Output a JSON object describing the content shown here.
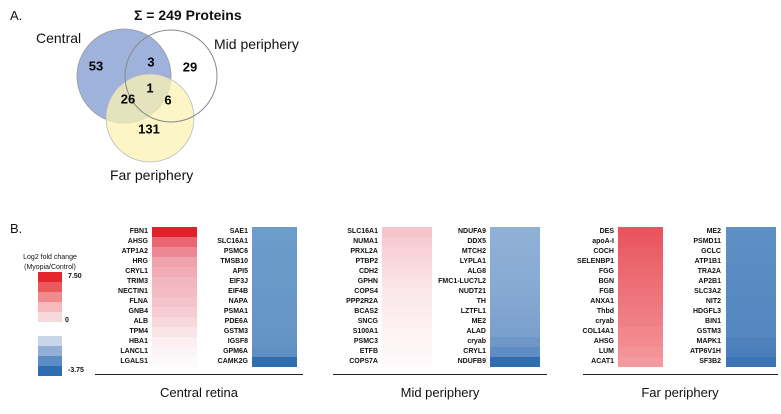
{
  "panel_a": {
    "letter": "A.",
    "total": "Σ = 249 Proteins",
    "circles": {
      "central": "Central",
      "mid": "Mid periphery",
      "far": "Far periphery"
    },
    "counts": {
      "central_only": "53",
      "central_mid": "3",
      "mid_only": "29",
      "central_far": "26",
      "all_three": "1",
      "mid_far": "6",
      "far_only": "131"
    },
    "colors": {
      "central": "#8ea4d6",
      "far": "#fbf3b3",
      "mid": "none"
    }
  },
  "panel_b": {
    "letter": "B.",
    "legend": {
      "title_line1": "Log2 fold change",
      "title_line2": "(Myopia/Control)",
      "max": "7.50",
      "mid": "0",
      "min": "-3.75",
      "colors": [
        "#e3262b",
        "#ea5a5c",
        "#f08a8d",
        "#f6b9bc",
        "#f7d9dc",
        "#ffffff",
        "#c9d5e8",
        "#93afd6",
        "#5b8cc3",
        "#2e6db1"
      ]
    },
    "groups": [
      {
        "label": "Central retina",
        "up_genes": [
          "FBN1",
          "AHSG",
          "ATP1A2",
          "HRG",
          "CRYL1",
          "TRIM3",
          "NECTIN1",
          "FLNA",
          "GNB4",
          "ALB",
          "TPM4",
          "HBA1",
          "LANCL1",
          "LGALS1"
        ],
        "up_colors": [
          "#e2202a",
          "#ea6672",
          "#ee8793",
          "#f0a2ad",
          "#f1acb6",
          "#f2b6c0",
          "#f3bcc5",
          "#f4c3cb",
          "#f5cdd3",
          "#f7d8dc",
          "#f9e4e8",
          "#fbeff2",
          "#fcf5f7",
          "#fdfafb"
        ],
        "down_genes": [
          "SAE1",
          "SLC16A1",
          "PSMC6",
          "TMSB10",
          "API5",
          "EIF3J",
          "EIF4B",
          "NAPA",
          "PSMA1",
          "PDE6A",
          "GSTM3",
          "IGSF8",
          "GPM6A",
          "CAMK2G"
        ],
        "down_colors": [
          "#6c9cc9",
          "#6d9cc9",
          "#6a9ac8",
          "#6a9ac8",
          "#6999c8",
          "#6999c7",
          "#6898c7",
          "#6897c7",
          "#6796c6",
          "#6695c6",
          "#6594c5",
          "#6493c5",
          "#6090c3",
          "#2f6db1"
        ]
      },
      {
        "label": "Mid periphery",
        "up_genes": [
          "SLC16A1",
          "NUMA1",
          "PRXL2A",
          "PTBP2",
          "CDH2",
          "GPHN",
          "COPS4",
          "PPP2R2A",
          "BCAS2",
          "SNCG",
          "S100A1",
          "PSMC3",
          "ETFB",
          "COPS7A"
        ],
        "up_colors": [
          "#f6c5cc",
          "#f7ccd2",
          "#f8d2d7",
          "#f9d8dd",
          "#fadde1",
          "#fbe2e6",
          "#fbe6e9",
          "#fcebee",
          "#fcedef",
          "#fdf0f2",
          "#fdf2f4",
          "#fef5f6",
          "#fef7f8",
          "#fefafb"
        ],
        "down_genes": [
          "NDUFA9",
          "DDX5",
          "MTCH2",
          "LYPLA1",
          "ALG8",
          "FMC1-LUC7L2",
          "NUDT21",
          "TH",
          "LZTFL1",
          "ME2",
          "ALAD",
          "cryab",
          "CRYL1",
          "NDUFB9"
        ],
        "down_colors": [
          "#8fb1d6",
          "#8eb0d6",
          "#8caed5",
          "#8badd4",
          "#89acd4",
          "#88abd3",
          "#86a9d2",
          "#84a7d1",
          "#82a5d0",
          "#7fa3cf",
          "#7ba0cd",
          "#6f97c8",
          "#5f8cc3",
          "#2f6db1"
        ]
      },
      {
        "label": "Far periphery",
        "up_genes": [
          "DES",
          "apoA-I",
          "COCH",
          "SELENBP1",
          "FGG",
          "BGN",
          "FGB",
          "ANXA1",
          "Thbd",
          "cryab",
          "COL14A1",
          "AHSG",
          "LUM",
          "ACAT1"
        ],
        "up_colors": [
          "#e9545e",
          "#ea5a63",
          "#eb5f68",
          "#ec656d",
          "#ec6970",
          "#ed6e75",
          "#ee7279",
          "#ee777d",
          "#ef7c82",
          "#f08086",
          "#f1868b",
          "#f28c91",
          "#f39297",
          "#f4999e"
        ],
        "down_genes": [
          "ME2",
          "PSMD11",
          "GCLC",
          "ATP1B1",
          "TRA2A",
          "AP2B1",
          "SLC3A2",
          "NIT2",
          "HDGFL3",
          "BIN1",
          "GSTM3",
          "MAPK1",
          "ATP6V1H",
          "SF3B2"
        ],
        "down_colors": [
          "#5e90c5",
          "#5d8fc4",
          "#5c8ec4",
          "#5b8dc3",
          "#5a8cc3",
          "#598bc2",
          "#588ac2",
          "#5789c1",
          "#5688c1",
          "#5587c0",
          "#5486bf",
          "#4f82bd",
          "#4a7ebb",
          "#3a74b5"
        ]
      }
    ]
  }
}
